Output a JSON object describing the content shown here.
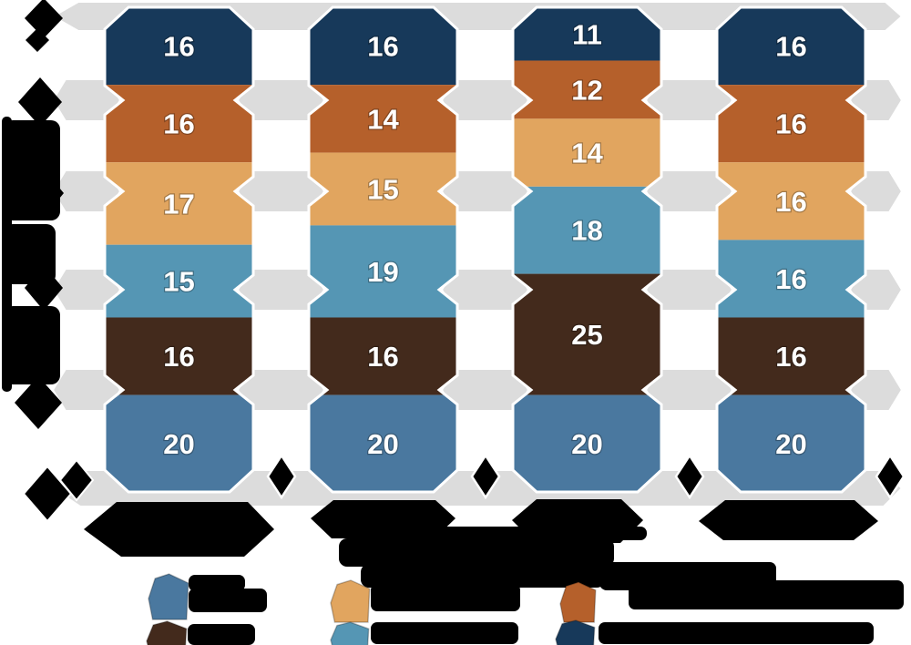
{
  "page": {
    "background": "#ffffff",
    "description": "100%-stacked chevron/gem column infographic with four columns of six tiers; every text label (axis title, row labels, column labels, legend labels) is redacted as solid black blobs; only the white tier percentage numbers are legible"
  },
  "chart_data": {
    "type": "bar",
    "variant": "stacked-100-percent-chevron-columns",
    "stack_total": 100,
    "categories": [
      "[redacted column label 1]",
      "[redacted column label 2]",
      "[redacted column label 3]",
      "[redacted column label 4]"
    ],
    "series": [
      {
        "name": "tier-1-navy",
        "color": "#17395a",
        "values": [
          16,
          16,
          11,
          16
        ]
      },
      {
        "name": "tier-2-dark-orange",
        "color": "#b5602b",
        "values": [
          16,
          14,
          12,
          16
        ]
      },
      {
        "name": "tier-3-tan",
        "color": "#e1a55f",
        "values": [
          17,
          15,
          14,
          16
        ]
      },
      {
        "name": "tier-4-light-blue",
        "color": "#5596b4",
        "values": [
          15,
          19,
          18,
          16
        ]
      },
      {
        "name": "tier-5-dark-brown",
        "color": "#432a1c",
        "values": [
          16,
          16,
          25,
          16
        ]
      },
      {
        "name": "tier-6-steel-blue",
        "color": "#4a789f",
        "values": [
          20,
          20,
          20,
          20
        ]
      }
    ],
    "value_labels": [
      [
        16,
        16,
        17,
        15,
        16,
        20
      ],
      [
        16,
        14,
        15,
        19,
        16,
        20
      ],
      [
        11,
        12,
        14,
        18,
        25,
        20
      ],
      [
        16,
        16,
        16,
        16,
        16,
        20
      ]
    ],
    "value_label_color": "#ffffff",
    "band_color": "#dcdcdc",
    "grid": "horizontal gray chevron ribbons between columns at four levels plus top and bottom bands",
    "ylabel": "[redacted vertical axis title]",
    "row_labels": "[redacted row labels with black diamond bullets]",
    "legend": {
      "position": "bottom",
      "layout_columns": 3,
      "items": [
        {
          "swatch_color": "#4a789f",
          "label": "[redacted]"
        },
        {
          "swatch_color": "#432a1c",
          "label": "[redacted]"
        },
        {
          "swatch_color": "#e1a55f",
          "label": "[redacted]"
        },
        {
          "swatch_color": "#5596b4",
          "label": "[redacted]"
        },
        {
          "swatch_color": "#b5602b",
          "label": "[redacted]"
        },
        {
          "swatch_color": "#17395a",
          "label": "[redacted]"
        }
      ]
    },
    "redaction_color": "#000000"
  }
}
